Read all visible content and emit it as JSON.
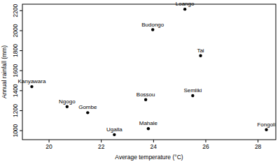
{
  "chart_data": {
    "type": "scatter",
    "x_label": "Average temperature (°C)",
    "y_label": "Annual rainfall (mm)",
    "labels": [
      "Kanyawara",
      "Ngogo",
      "Gombe",
      "Ugalla",
      "Bossou",
      "Mahale",
      "Budongo",
      "Loango",
      "Semliki",
      "Tai",
      "Fongoli"
    ],
    "x": [
      19.34,
      20.69,
      21.48,
      22.5,
      23.7,
      23.8,
      23.97,
      25.2,
      25.5,
      25.8,
      28.32
    ],
    "values": [
      1440,
      1240,
      1180,
      960,
      1310,
      1020,
      2010,
      2215,
      1350,
      1750,
      1010
    ],
    "color": "#000000",
    "marker": "circle",
    "xlim": [
      18.98,
      28.68
    ],
    "ylim": [
      910,
      2265
    ],
    "xticks": [
      20,
      22,
      24,
      26,
      28
    ],
    "yticks": [
      1000,
      1200,
      1400,
      1600,
      1800,
      2000,
      2200
    ],
    "grid": false
  }
}
